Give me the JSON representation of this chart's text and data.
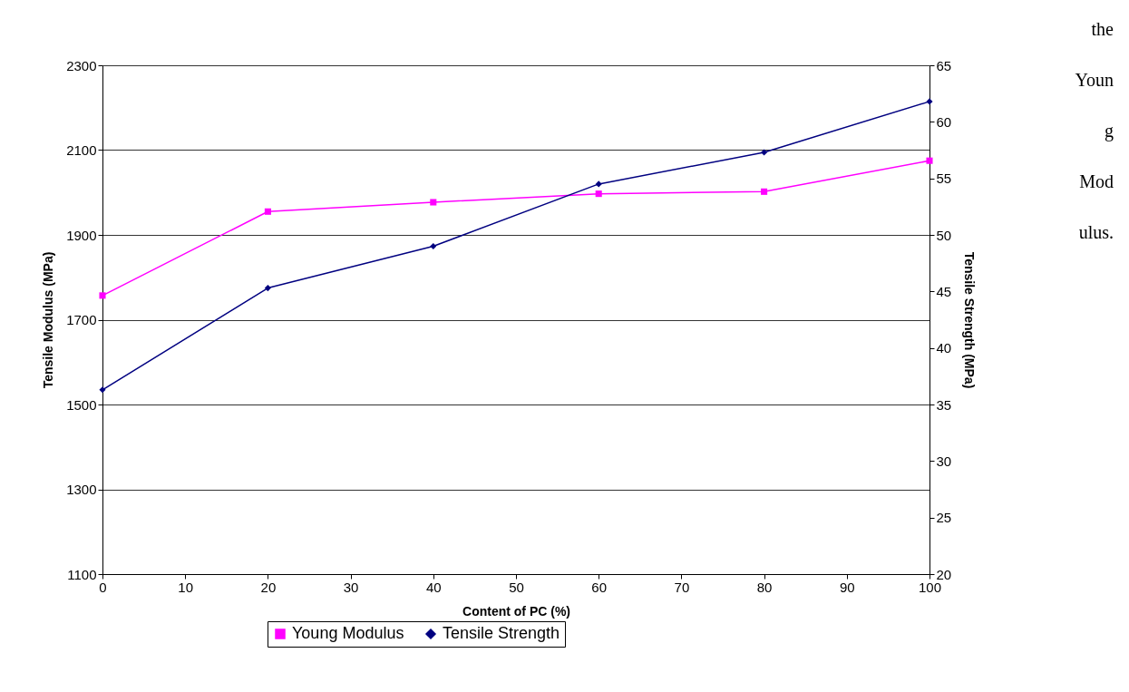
{
  "chart_data": {
    "type": "line",
    "xlabel": "Content of PC (%)",
    "ylabel": "Tensile Modulus (MPa)",
    "y2label": "Tensile Strength (MPa)",
    "x": [
      0,
      20,
      40,
      60,
      80,
      100
    ],
    "series": [
      {
        "name": "Young Modulus",
        "color": "#ff00ff",
        "marker": "square",
        "values": [
          1757,
          1955,
          1977,
          1997,
          2002,
          2075
        ]
      },
      {
        "name": "Tensile Strength",
        "color": "#000080",
        "marker": "diamond",
        "axis": "y2",
        "values": [
          36.3,
          45.3,
          49.0,
          54.5,
          57.3,
          61.8
        ]
      }
    ],
    "xlim": [
      0,
      100
    ],
    "xticks": [
      0,
      10,
      20,
      30,
      40,
      50,
      60,
      70,
      80,
      90,
      100
    ],
    "ylim": [
      1100,
      2300
    ],
    "yticks": [
      1100,
      1300,
      1500,
      1700,
      1900,
      2100,
      2300
    ],
    "y2lim": [
      20,
      65
    ],
    "y2ticks": [
      20,
      25,
      30,
      35,
      40,
      45,
      50,
      55,
      60,
      65
    ],
    "grid": "y",
    "legend": "bottom",
    "line_style": "solid",
    "annotations": [
      "the Youn g Mod ulus."
    ]
  }
}
